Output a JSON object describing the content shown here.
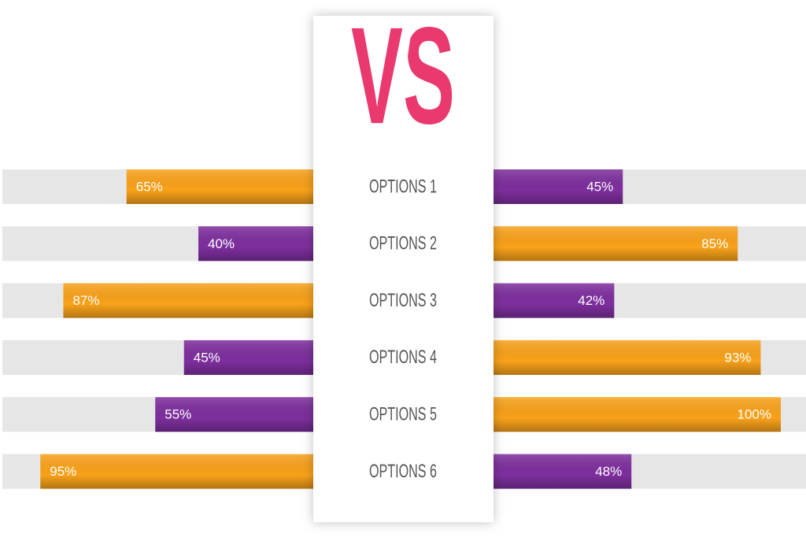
{
  "chart_data": {
    "type": "diverging-bar",
    "title": "VS",
    "categories": [
      "OPTIONS 1",
      "OPTIONS 2",
      "OPTIONS 3",
      "OPTIONS 4",
      "OPTIONS 5",
      "OPTIONS 6"
    ],
    "xlim": [
      0,
      100
    ],
    "series": [
      {
        "side": "left",
        "values": [
          65,
          40,
          87,
          45,
          55,
          95
        ],
        "value_labels": [
          "65%",
          "40%",
          "87%",
          "45%",
          "55%",
          "95%"
        ],
        "colors": [
          "#f9a21a",
          "#7e2f9e",
          "#f9a21a",
          "#7e2f9e",
          "#7e2f9e",
          "#f9a21a"
        ]
      },
      {
        "side": "right",
        "values": [
          45,
          85,
          42,
          93,
          100,
          48
        ],
        "value_labels": [
          "45%",
          "85%",
          "42%",
          "93%",
          "100%",
          "48%"
        ],
        "colors": [
          "#7e2f9e",
          "#f9a21a",
          "#7e2f9e",
          "#f9a21a",
          "#f9a21a",
          "#7e2f9e"
        ]
      }
    ]
  }
}
